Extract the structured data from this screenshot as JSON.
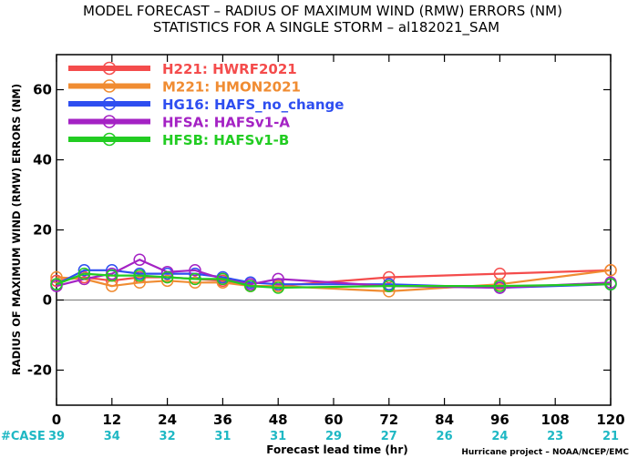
{
  "chart_data": {
    "type": "line",
    "title": "MODEL FORECAST – RADIUS OF MAXIMUM WIND (RMW) ERRORS (NM)",
    "subtitle": "STATISTICS FOR A SINGLE STORM – al182021_SAM",
    "xlabel": "Forecast lead time (hr)",
    "ylabel": "RADIUS OF MAXIMUM WIND (RMW) ERRORS (NM)",
    "xlim": [
      0,
      120
    ],
    "ylim": [
      -30,
      70
    ],
    "x_ticks": [
      0,
      12,
      24,
      36,
      48,
      60,
      72,
      84,
      96,
      108,
      120
    ],
    "y_ticks": [
      -20,
      0,
      20,
      40,
      60
    ],
    "y_tick_labels": [
      "-20",
      "0",
      "20",
      "40",
      "60"
    ],
    "zero_line": true,
    "grid": false,
    "legend_position": "top-left",
    "case_label": "#CASE",
    "case_counts": [
      "39",
      "34",
      "32",
      "31",
      "31",
      "29",
      "27",
      "26",
      "24",
      "23",
      "21"
    ],
    "case_color": "#1fb8c4",
    "credit": "Hurricane project – NOAA/NCEP/EMC",
    "series": [
      {
        "name": "H221:  HWRF2021",
        "color": "#f44c4c",
        "points": [
          [
            0,
            5.5
          ],
          [
            6,
            6.5
          ],
          [
            12,
            5.5
          ],
          [
            18,
            6.5
          ],
          [
            24,
            6.5
          ],
          [
            30,
            6.0
          ],
          [
            36,
            5.5
          ],
          [
            42,
            4.0
          ],
          [
            48,
            4.0
          ],
          [
            72,
            6.5
          ],
          [
            96,
            7.5
          ],
          [
            120,
            8.5
          ]
        ]
      },
      {
        "name": "M221:  HMON2021",
        "color": "#f08c32",
        "points": [
          [
            0,
            6.5
          ],
          [
            6,
            6.0
          ],
          [
            12,
            4.0
          ],
          [
            18,
            5.0
          ],
          [
            24,
            5.5
          ],
          [
            30,
            5.0
          ],
          [
            36,
            5.0
          ],
          [
            42,
            4.0
          ],
          [
            48,
            4.0
          ],
          [
            72,
            2.5
          ],
          [
            96,
            4.5
          ],
          [
            120,
            8.5
          ]
        ]
      },
      {
        "name": "HG16:  HAFS_no_change",
        "color": "#2e4ef0",
        "points": [
          [
            0,
            4.5
          ],
          [
            6,
            8.5
          ],
          [
            12,
            8.5
          ],
          [
            18,
            7.5
          ],
          [
            24,
            7.5
          ],
          [
            30,
            7.5
          ],
          [
            36,
            6.5
          ],
          [
            42,
            5.0
          ],
          [
            48,
            4.5
          ],
          [
            72,
            4.5
          ],
          [
            96,
            3.5
          ],
          [
            120,
            4.5
          ]
        ]
      },
      {
        "name": "HFSA:  HAFSv1-A",
        "color": "#a422c4",
        "points": [
          [
            0,
            4.0
          ],
          [
            6,
            6.0
          ],
          [
            12,
            7.5
          ],
          [
            18,
            11.5
          ],
          [
            24,
            8.0
          ],
          [
            30,
            8.5
          ],
          [
            36,
            6.0
          ],
          [
            42,
            4.5
          ],
          [
            48,
            6.0
          ],
          [
            72,
            4.0
          ],
          [
            96,
            3.5
          ],
          [
            120,
            5.0
          ]
        ]
      },
      {
        "name": "HFSB:  HAFSv1-B",
        "color": "#22cc22",
        "points": [
          [
            0,
            4.5
          ],
          [
            6,
            7.5
          ],
          [
            12,
            7.0
          ],
          [
            18,
            7.0
          ],
          [
            24,
            6.5
          ],
          [
            30,
            6.0
          ],
          [
            36,
            6.0
          ],
          [
            42,
            4.0
          ],
          [
            48,
            3.5
          ],
          [
            72,
            4.0
          ],
          [
            96,
            4.0
          ],
          [
            120,
            4.5
          ]
        ]
      }
    ]
  }
}
